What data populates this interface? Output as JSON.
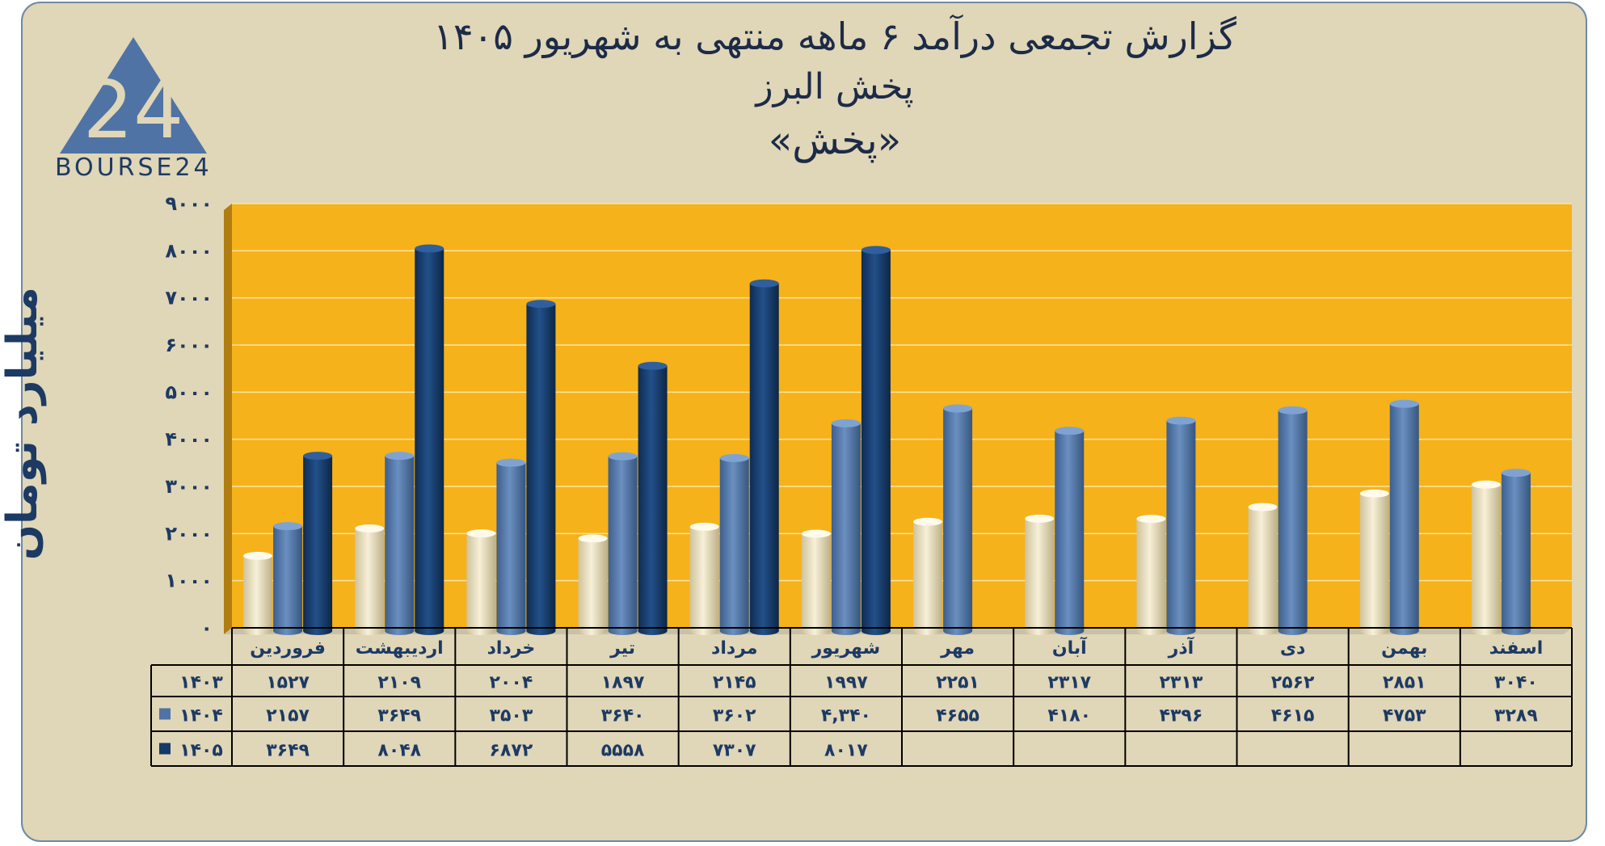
{
  "header": {
    "title_line1": "گزارش تجمعی درآمد ۶ ماهه منتهی به شهریور ۱۴۰۵",
    "title_line2": "پخش البرز",
    "title_line3": "«پخش»"
  },
  "logo": {
    "text": "BOURSE24",
    "number": "24"
  },
  "colors": {
    "plot_bg": "#f6b21a",
    "card_bg": "#e0d6b8",
    "series_1403": "#ece3c4",
    "series_1404": "#4f73a4",
    "series_1405": "#153a68",
    "text_dark": "#1c3a63"
  },
  "chart_data": {
    "type": "bar",
    "ylabel": "میلیارد تومان",
    "ylim": [
      0,
      9000
    ],
    "y_ticks": [
      "۰",
      "۱۰۰۰",
      "۲۰۰۰",
      "۳۰۰۰",
      "۴۰۰۰",
      "۵۰۰۰",
      "۶۰۰۰",
      "۷۰۰۰",
      "۸۰۰۰",
      "۹۰۰۰"
    ],
    "grid": true,
    "categories": [
      "فروردین",
      "اردیبهشت",
      "خرداد",
      "تیر",
      "مرداد",
      "شهریور",
      "مهر",
      "آبان",
      "آذر",
      "دی",
      "بهمن",
      "اسفند"
    ],
    "series": [
      {
        "name": "۱۴۰۳",
        "values": [
          1527,
          2109,
          2004,
          1897,
          2145,
          1997,
          2251,
          2317,
          2313,
          2562,
          2851,
          3040
        ],
        "labels": [
          "۱۵۲۷",
          "۲۱۰۹",
          "۲۰۰۴",
          "۱۸۹۷",
          "۲۱۴۵",
          "۱۹۹۷",
          "۲۲۵۱",
          "۲۳۱۷",
          "۲۳۱۳",
          "۲۵۶۲",
          "۲۸۵۱",
          "۳۰۴۰"
        ]
      },
      {
        "name": "۱۴۰۴",
        "values": [
          2157,
          3649,
          3503,
          3640,
          3602,
          4340,
          4655,
          4180,
          4396,
          4615,
          4753,
          3289
        ],
        "labels": [
          "۲۱۵۷",
          "۳۶۴۹",
          "۳۵۰۳",
          "۳۶۴۰",
          "۳۶۰۲",
          "۴,۳۴۰",
          "۴۶۵۵",
          "۴۱۸۰",
          "۴۳۹۶",
          "۴۶۱۵",
          "۴۷۵۳",
          "۳۲۸۹"
        ]
      },
      {
        "name": "۱۴۰۵",
        "values": [
          3649,
          8048,
          6872,
          5558,
          7307,
          8017,
          null,
          null,
          null,
          null,
          null,
          null
        ],
        "labels": [
          "۳۶۴۹",
          "۸۰۴۸",
          "۶۸۷۲",
          "۵۵۵۸",
          "۷۳۰۷",
          "۸۰۱۷",
          "",
          "",
          "",
          "",
          "",
          ""
        ]
      }
    ]
  }
}
